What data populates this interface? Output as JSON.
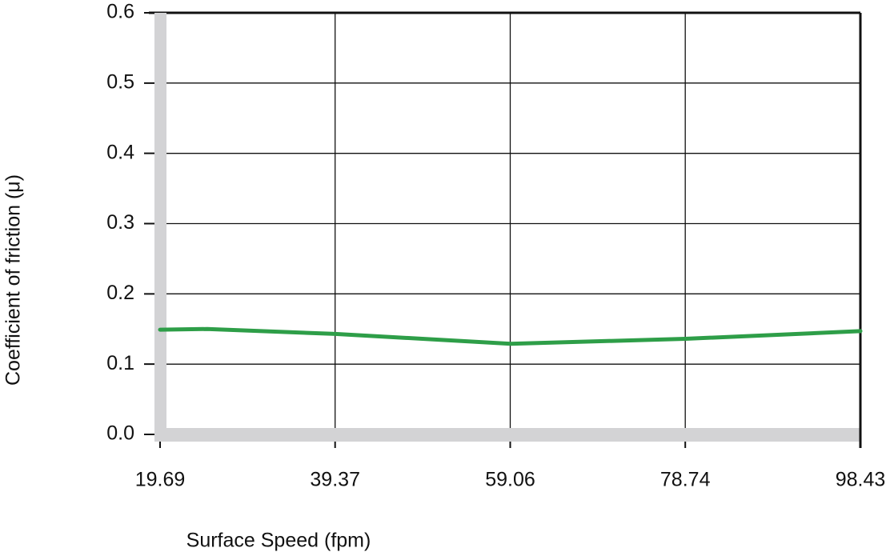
{
  "chart_data": {
    "type": "line",
    "x_label": "Surface Speed (fpm)",
    "y_label": "Coefficient of friction (μ)",
    "x": [
      19.69,
      25,
      39.37,
      59.06,
      78.74,
      98.43
    ],
    "values": [
      0.149,
      0.15,
      0.143,
      0.129,
      0.136,
      0.147
    ],
    "color": "#2e9e48",
    "xlim": [
      19.69,
      98.43
    ],
    "xticks": [
      19.69,
      39.37,
      59.06,
      78.74,
      98.43
    ],
    "ylim": [
      0,
      0.6
    ],
    "yticks": [
      {
        "value": 0,
        "label": "0.0"
      },
      0.1,
      0.2,
      0.3,
      0.4,
      0.5,
      0.6
    ],
    "grid": true
  }
}
